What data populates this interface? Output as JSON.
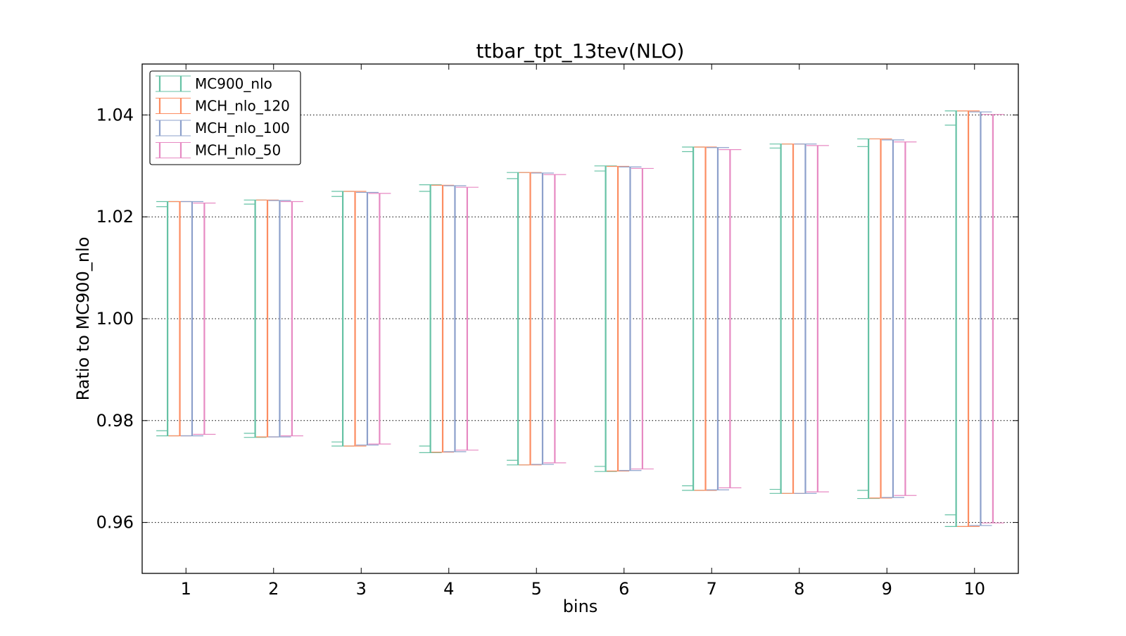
{
  "chart_data": {
    "type": "errorbar",
    "title": "ttbar_tpt_13tev(NLO)",
    "xlabel": "bins",
    "ylabel": "Ratio to MC900_nlo",
    "xlim": [
      0.5,
      10.5
    ],
    "ylim": [
      0.95,
      1.05
    ],
    "x_ticks": [
      1,
      2,
      3,
      4,
      5,
      6,
      7,
      8,
      9,
      10
    ],
    "x_tick_labels": [
      "1",
      "2",
      "3",
      "4",
      "5",
      "6",
      "7",
      "8",
      "9",
      "10"
    ],
    "y_ticks": [
      0.96,
      0.98,
      1.0,
      1.02,
      1.04
    ],
    "y_tick_labels": [
      "0.96",
      "0.98",
      "1.00",
      "1.02",
      "1.04"
    ],
    "grid": "horizontal dotted",
    "legend_position": "top-left",
    "series": [
      {
        "name": "MC900_nlo",
        "color": "#66c2a5",
        "low": [
          0.977,
          0.9767,
          0.975,
          0.9737,
          0.9713,
          0.97,
          0.9663,
          0.9657,
          0.9647,
          0.9592
        ],
        "high": [
          1.023,
          1.0233,
          1.025,
          1.0263,
          1.0287,
          1.03,
          1.0337,
          1.0343,
          1.0353,
          1.0408
        ],
        "inner_low": [
          0.978,
          0.9775,
          0.9758,
          0.975,
          0.9722,
          0.971,
          0.9672,
          0.9665,
          0.9663,
          0.9615
        ],
        "inner_high": [
          1.022,
          1.0225,
          1.024,
          1.025,
          1.0275,
          1.029,
          1.0328,
          1.0335,
          1.0338,
          1.038
        ]
      },
      {
        "name": "MCH_nlo_120",
        "color": "#fc8d62",
        "low": [
          0.977,
          0.9768,
          0.975,
          0.9738,
          0.9713,
          0.9701,
          0.9663,
          0.9657,
          0.9648,
          0.9592
        ],
        "high": [
          1.023,
          1.0233,
          1.025,
          1.0262,
          1.0287,
          1.0299,
          1.0337,
          1.0343,
          1.0353,
          1.0408
        ]
      },
      {
        "name": "MCH_nlo_100",
        "color": "#8da0cb",
        "low": [
          0.977,
          0.9768,
          0.9752,
          0.9739,
          0.9714,
          0.9702,
          0.9664,
          0.9657,
          0.9649,
          0.9594
        ],
        "high": [
          1.023,
          1.0232,
          1.0248,
          1.0261,
          1.0286,
          1.0298,
          1.0336,
          1.0343,
          1.0351,
          1.0406
        ]
      },
      {
        "name": "MCH_nlo_50",
        "color": "#e78ac3",
        "low": [
          0.9773,
          0.977,
          0.9754,
          0.9742,
          0.9717,
          0.9705,
          0.9668,
          0.966,
          0.9653,
          0.9599
        ],
        "high": [
          1.0227,
          1.023,
          1.0246,
          1.0258,
          1.0283,
          1.0295,
          1.0332,
          1.034,
          1.0347,
          1.0401
        ]
      }
    ]
  }
}
